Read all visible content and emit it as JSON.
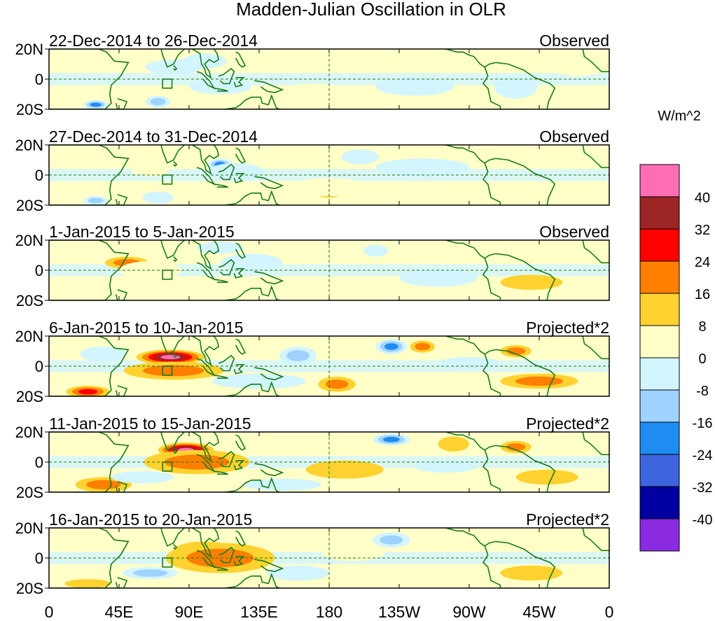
{
  "title": "Madden-Julian Oscillation in OLR",
  "colorbar": {
    "unit_label": "W/m^2",
    "levels": [
      "40",
      "32",
      "24",
      "16",
      "8",
      "0",
      "-8",
      "-16",
      "-24",
      "-32",
      "-40"
    ],
    "colors": [
      "#ff6eb4",
      "#9c2525",
      "#ff0000",
      "#ff7f00",
      "#ffd230",
      "#ffffc8",
      "#d2f5ff",
      "#a0d2ff",
      "#1e8cf0",
      "#3c64dc",
      "#0000a0",
      "#8a2be2"
    ]
  },
  "x_ticks": [
    "0",
    "45E",
    "90E",
    "135E",
    "180",
    "135W",
    "90W",
    "45W",
    "0"
  ],
  "y_ticks": [
    "20N",
    "0",
    "20S"
  ],
  "chart_data": {
    "type": "heatmap",
    "title": "Madden-Julian Oscillation in OLR",
    "unit": "W/m^2",
    "lon_range": [
      0,
      360
    ],
    "lat_range": [
      -20,
      20
    ],
    "panels": [
      {
        "date": "22-Dec-2014 to 26-Dec-2014",
        "label": "Observed",
        "anomalies": [
          {
            "lon": 80,
            "lat": 8,
            "value": -14,
            "rlon": 18,
            "rlat": 5
          },
          {
            "lon": 70,
            "lat": -15,
            "value": -20,
            "rlon": 8,
            "rlat": 4
          },
          {
            "lon": 30,
            "lat": -17,
            "value": -26,
            "rlon": 8,
            "rlat": 3
          },
          {
            "lon": 100,
            "lat": 12,
            "value": -10,
            "rlon": 14,
            "rlat": 5
          },
          {
            "lon": 110,
            "lat": -5,
            "value": -9,
            "rlon": 20,
            "rlat": 5
          },
          {
            "lon": 150,
            "lat": 12,
            "value": 5,
            "rlon": 30,
            "rlat": 8
          },
          {
            "lon": 170,
            "lat": -7,
            "value": 7,
            "rlon": 20,
            "rlat": 4
          },
          {
            "lon": 200,
            "lat": 10,
            "value": 4,
            "rlon": 25,
            "rlat": 6
          },
          {
            "lon": 25,
            "lat": 15,
            "value": 4,
            "rlon": 30,
            "rlat": 5
          },
          {
            "lon": 300,
            "lat": -5,
            "value": -9,
            "rlon": 14,
            "rlat": 8
          },
          {
            "lon": 235,
            "lat": -5,
            "value": -6,
            "rlon": 25,
            "rlat": 6
          },
          {
            "lon": 340,
            "lat": 10,
            "value": 3,
            "rlon": 20,
            "rlat": 8
          }
        ]
      },
      {
        "date": "27-Dec-2014 to 31-Dec-2014",
        "label": "Observed",
        "anomalies": [
          {
            "lon": 110,
            "lat": 7,
            "value": -25,
            "rlon": 8,
            "rlat": 4
          },
          {
            "lon": 120,
            "lat": 2,
            "value": -14,
            "rlon": 18,
            "rlat": 6
          },
          {
            "lon": 70,
            "lat": -15,
            "value": -15,
            "rlon": 10,
            "rlat": 4
          },
          {
            "lon": 30,
            "lat": -17,
            "value": -20,
            "rlon": 8,
            "rlat": 3
          },
          {
            "lon": 65,
            "lat": 3,
            "value": 6,
            "rlon": 12,
            "rlat": 4
          },
          {
            "lon": 180,
            "lat": -12,
            "value": 20,
            "rlon": 8,
            "rlat": 3
          },
          {
            "lon": 180,
            "lat": -8,
            "value": 6,
            "rlon": 25,
            "rlat": 6
          },
          {
            "lon": 150,
            "lat": 15,
            "value": 7,
            "rlon": 20,
            "rlat": 5
          },
          {
            "lon": 200,
            "lat": 12,
            "value": -9,
            "rlon": 12,
            "rlat": 5
          },
          {
            "lon": 300,
            "lat": -12,
            "value": 7,
            "rlon": 25,
            "rlat": 5
          },
          {
            "lon": 240,
            "lat": 5,
            "value": -6,
            "rlon": 30,
            "rlat": 6
          }
        ]
      },
      {
        "date": "1-Jan-2015 to 5-Jan-2015",
        "label": "Observed",
        "anomalies": [
          {
            "lon": 50,
            "lat": 5,
            "value": 18,
            "rlon": 14,
            "rlat": 4
          },
          {
            "lon": 65,
            "lat": 0,
            "value": 7,
            "rlon": 20,
            "rlat": 6
          },
          {
            "lon": 80,
            "lat": -12,
            "value": 6,
            "rlon": 20,
            "rlat": 4
          },
          {
            "lon": 130,
            "lat": 5,
            "value": -10,
            "rlon": 20,
            "rlat": 6
          },
          {
            "lon": 110,
            "lat": 15,
            "value": -8,
            "rlon": 15,
            "rlat": 4
          },
          {
            "lon": 210,
            "lat": 13,
            "value": -9,
            "rlon": 8,
            "rlat": 4
          },
          {
            "lon": 230,
            "lat": 15,
            "value": 6,
            "rlon": 10,
            "rlat": 4
          },
          {
            "lon": 310,
            "lat": -8,
            "value": 8,
            "rlon": 20,
            "rlat": 5
          },
          {
            "lon": 20,
            "lat": -14,
            "value": 7,
            "rlon": 15,
            "rlat": 5
          },
          {
            "lon": 250,
            "lat": -5,
            "value": -6,
            "rlon": 25,
            "rlat": 6
          }
        ]
      },
      {
        "date": "6-Jan-2015 to 10-Jan-2015",
        "label": "Projected*2",
        "anomalies": [
          {
            "lon": 78,
            "lat": 6,
            "value": 42,
            "rlon": 22,
            "rlat": 5
          },
          {
            "lon": 80,
            "lat": -3,
            "value": 20,
            "rlon": 32,
            "rlat": 6
          },
          {
            "lon": 25,
            "lat": -17,
            "value": 30,
            "rlon": 14,
            "rlat": 4
          },
          {
            "lon": 160,
            "lat": 7,
            "value": -22,
            "rlon": 12,
            "rlat": 6
          },
          {
            "lon": 135,
            "lat": -10,
            "value": -12,
            "rlon": 30,
            "rlat": 5
          },
          {
            "lon": 185,
            "lat": -12,
            "value": 18,
            "rlon": 12,
            "rlat": 5
          },
          {
            "lon": 220,
            "lat": 13,
            "value": -30,
            "rlon": 10,
            "rlat": 5
          },
          {
            "lon": 240,
            "lat": 13,
            "value": 18,
            "rlon": 8,
            "rlat": 4
          },
          {
            "lon": 300,
            "lat": 10,
            "value": 18,
            "rlon": 10,
            "rlat": 4
          },
          {
            "lon": 315,
            "lat": -10,
            "value": 20,
            "rlon": 25,
            "rlat": 5
          },
          {
            "lon": 270,
            "lat": 2,
            "value": -10,
            "rlon": 20,
            "rlat": 4
          },
          {
            "lon": 35,
            "lat": 8,
            "value": -8,
            "rlon": 15,
            "rlat": 5
          }
        ]
      },
      {
        "date": "11-Jan-2015 to 15-Jan-2015",
        "label": "Projected*2",
        "anomalies": [
          {
            "lon": 88,
            "lat": 8,
            "value": 42,
            "rlon": 18,
            "rlat": 5
          },
          {
            "lon": 95,
            "lat": 0,
            "value": 22,
            "rlon": 34,
            "rlat": 8
          },
          {
            "lon": 35,
            "lat": -15,
            "value": 18,
            "rlon": 18,
            "rlat": 5
          },
          {
            "lon": 150,
            "lat": -15,
            "value": -14,
            "rlon": 25,
            "rlat": 4
          },
          {
            "lon": 60,
            "lat": -10,
            "value": -12,
            "rlon": 20,
            "rlat": 4
          },
          {
            "lon": 220,
            "lat": 15,
            "value": -28,
            "rlon": 12,
            "rlat": 4
          },
          {
            "lon": 260,
            "lat": 12,
            "value": 10,
            "rlon": 10,
            "rlat": 5
          },
          {
            "lon": 300,
            "lat": 10,
            "value": 18,
            "rlon": 10,
            "rlat": 4
          },
          {
            "lon": 320,
            "lat": -10,
            "value": 14,
            "rlon": 20,
            "rlat": 5
          },
          {
            "lon": 190,
            "lat": -5,
            "value": 8,
            "rlon": 25,
            "rlat": 6
          },
          {
            "lon": 255,
            "lat": -3,
            "value": -8,
            "rlon": 20,
            "rlat": 4
          }
        ]
      },
      {
        "date": "16-Jan-2015 to 20-Jan-2015",
        "label": "Projected*2",
        "anomalies": [
          {
            "lon": 100,
            "lat": 5,
            "value": 30,
            "rlon": 20,
            "rlat": 6
          },
          {
            "lon": 110,
            "lat": 0,
            "value": 18,
            "rlon": 35,
            "rlat": 10
          },
          {
            "lon": 65,
            "lat": -10,
            "value": -18,
            "rlon": 18,
            "rlat": 4
          },
          {
            "lon": 160,
            "lat": -10,
            "value": -14,
            "rlon": 20,
            "rlat": 5
          },
          {
            "lon": 220,
            "lat": 12,
            "value": -20,
            "rlon": 12,
            "rlat": 5
          },
          {
            "lon": 250,
            "lat": 10,
            "value": 7,
            "rlon": 15,
            "rlat": 5
          },
          {
            "lon": 310,
            "lat": -10,
            "value": 9,
            "rlon": 20,
            "rlat": 5
          },
          {
            "lon": 25,
            "lat": -17,
            "value": 8,
            "rlon": 15,
            "rlat": 3
          },
          {
            "lon": 195,
            "lat": 3,
            "value": 6,
            "rlon": 20,
            "rlat": 5
          }
        ]
      }
    ]
  }
}
